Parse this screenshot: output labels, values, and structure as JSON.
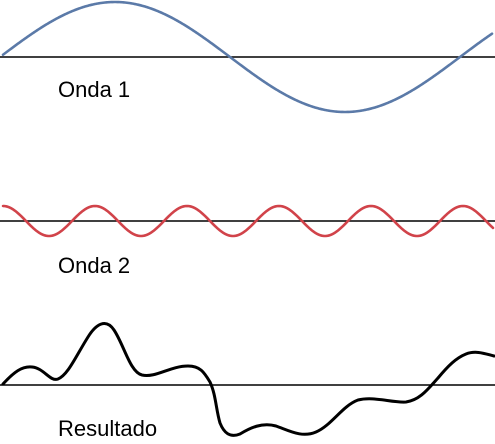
{
  "diagram": {
    "waves": [
      {
        "label": "Onda 1",
        "color": "#5b7aa8"
      },
      {
        "label": "Onda 2",
        "color": "#d1434a"
      },
      {
        "label": "Resultado",
        "color": "#000000"
      }
    ],
    "axis_color": "#000000"
  }
}
